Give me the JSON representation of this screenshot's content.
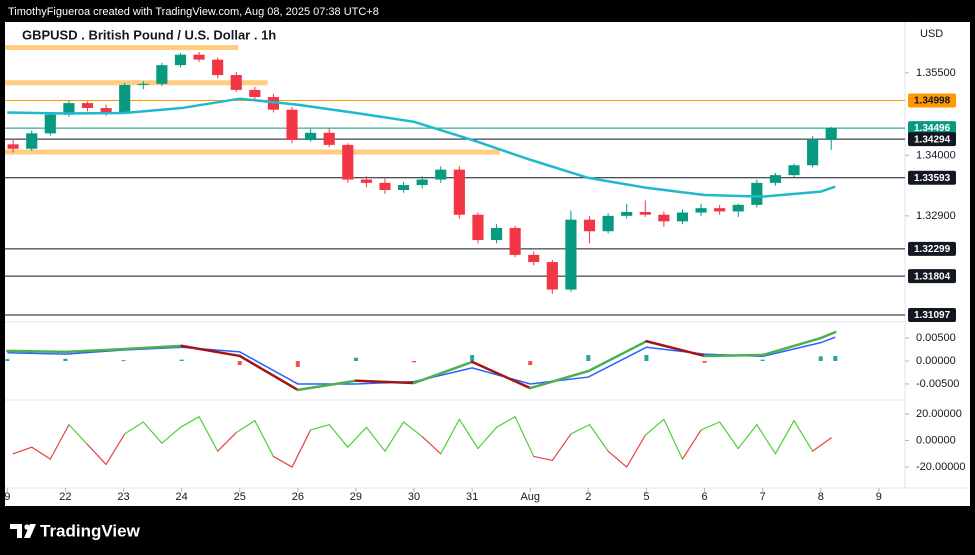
{
  "attribution": "TimothyFigueroa created with TradingView.com, Aug 08, 2025 07:38 UTC+8",
  "brand": "TradingView",
  "chart_data": [
    {
      "type": "candlestick",
      "title": "GBPUSD . British Pound / U.S. Dollar . 1h",
      "y_unit": "USD",
      "up_color": "#089981",
      "down_color": "#f23645",
      "xlim": [
        -0.04,
        15.45
      ],
      "xticks": [
        {
          "value": 0,
          "label": "9"
        },
        {
          "value": 1,
          "label": "22"
        },
        {
          "value": 2,
          "label": "23"
        },
        {
          "value": 3,
          "label": "24"
        },
        {
          "value": 4,
          "label": "25"
        },
        {
          "value": 5,
          "label": "26"
        },
        {
          "value": 6,
          "label": "29"
        },
        {
          "value": 7,
          "label": "30"
        },
        {
          "value": 8,
          "label": "31"
        },
        {
          "value": 9,
          "label": "Aug"
        },
        {
          "value": 10,
          "label": "2"
        },
        {
          "value": 11,
          "label": "5"
        },
        {
          "value": 12,
          "label": "6"
        },
        {
          "value": 13,
          "label": "7"
        },
        {
          "value": 14,
          "label": "8"
        },
        {
          "value": 15,
          "label": "9"
        }
      ],
      "ylim": [
        1.3097,
        1.3637
      ],
      "yticks": [
        {
          "value": 1.355,
          "label": "1.35500"
        },
        {
          "value": 1.34,
          "label": "1.34000"
        },
        {
          "value": 1.329,
          "label": "1.32900"
        }
      ],
      "x": [
        0.1,
        0.42,
        0.74,
        1.06,
        1.38,
        1.7,
        2.02,
        2.34,
        2.66,
        2.98,
        3.3,
        3.62,
        3.94,
        4.26,
        4.58,
        4.9,
        5.22,
        5.54,
        5.86,
        6.18,
        6.5,
        6.82,
        7.14,
        7.46,
        7.78,
        8.1,
        8.42,
        8.74,
        9.06,
        9.38,
        9.7,
        10.02,
        10.34,
        10.66,
        10.98,
        11.3,
        11.62,
        11.94,
        12.26,
        12.58,
        12.9,
        13.22,
        13.54,
        13.86,
        14.18
      ],
      "open": [
        1.342,
        1.3412,
        1.344,
        1.3474,
        1.3495,
        1.3486,
        1.3478,
        1.3528,
        1.353,
        1.3564,
        1.3583,
        1.3574,
        1.3546,
        1.3519,
        1.3506,
        1.3483,
        1.3428,
        1.3441,
        1.3419,
        1.3356,
        1.335,
        1.3337,
        1.3346,
        1.3356,
        1.3374,
        1.3292,
        1.3246,
        1.3268,
        1.3219,
        1.3206,
        1.3156,
        1.3283,
        1.3262,
        1.329,
        1.3297,
        1.3292,
        1.328,
        1.3296,
        1.3304,
        1.3298,
        1.331,
        1.335,
        1.3364,
        1.3382,
        1.3428
      ],
      "high": [
        1.3428,
        1.3445,
        1.3478,
        1.35,
        1.3498,
        1.3492,
        1.3532,
        1.3535,
        1.3568,
        1.3586,
        1.3588,
        1.3578,
        1.3552,
        1.3525,
        1.3512,
        1.3488,
        1.3448,
        1.345,
        1.3422,
        1.3362,
        1.3358,
        1.3352,
        1.3362,
        1.338,
        1.338,
        1.3296,
        1.3275,
        1.3272,
        1.3225,
        1.321,
        1.33,
        1.329,
        1.3295,
        1.3312,
        1.3318,
        1.3298,
        1.3302,
        1.3312,
        1.331,
        1.3312,
        1.3356,
        1.3368,
        1.3385,
        1.3435,
        1.3452
      ],
      "low": [
        1.3405,
        1.3408,
        1.3436,
        1.347,
        1.348,
        1.3472,
        1.3475,
        1.352,
        1.3526,
        1.356,
        1.357,
        1.354,
        1.3515,
        1.35,
        1.3478,
        1.3422,
        1.3425,
        1.3415,
        1.335,
        1.3342,
        1.333,
        1.3332,
        1.334,
        1.335,
        1.3285,
        1.324,
        1.324,
        1.3215,
        1.32,
        1.3148,
        1.3152,
        1.324,
        1.3258,
        1.3285,
        1.3288,
        1.327,
        1.3275,
        1.329,
        1.3292,
        1.3288,
        1.3305,
        1.3345,
        1.336,
        1.3378,
        1.341
      ],
      "close": [
        1.3412,
        1.344,
        1.3474,
        1.3495,
        1.3486,
        1.3478,
        1.3528,
        1.353,
        1.3564,
        1.3583,
        1.3574,
        1.3546,
        1.3519,
        1.3506,
        1.3483,
        1.3428,
        1.3441,
        1.3419,
        1.3356,
        1.335,
        1.3337,
        1.3346,
        1.3356,
        1.3374,
        1.3292,
        1.3246,
        1.3268,
        1.3219,
        1.3206,
        1.3156,
        1.3283,
        1.3262,
        1.329,
        1.3297,
        1.3292,
        1.328,
        1.3296,
        1.3304,
        1.3298,
        1.331,
        1.335,
        1.3364,
        1.3382,
        1.3428,
        1.345
      ],
      "moving_average": {
        "color": "#1eb8cf",
        "x": [
          0,
          1,
          2,
          3,
          4,
          5,
          6,
          7,
          8,
          9,
          10,
          11,
          12,
          13,
          14,
          14.25
        ],
        "values": [
          1.3478,
          1.3476,
          1.3477,
          1.3486,
          1.3503,
          1.3492,
          1.3477,
          1.3461,
          1.3428,
          1.3392,
          1.3359,
          1.3341,
          1.3328,
          1.3325,
          1.3334,
          1.3343
        ]
      },
      "zones": [
        {
          "value": 1.3596,
          "x": [
            -0.04,
            3.97
          ],
          "color": "#ffcc80"
        },
        {
          "value": 1.3532,
          "x": [
            -0.04,
            4.48
          ],
          "color": "#ffcc80"
        },
        {
          "value": 1.3406,
          "x": [
            -0.04,
            8.48
          ],
          "color": "#ffcc80"
        }
      ],
      "levels": [
        {
          "value": 1.34998,
          "color": "#ff9800",
          "text_color": "#131722"
        },
        {
          "value": 1.34496,
          "color": "#089981",
          "text_color": "#ffffff"
        },
        {
          "value": 1.34294,
          "color": "#131722",
          "text_color": "#ffffff"
        },
        {
          "value": 1.33593,
          "color": "#131722",
          "text_color": "#ffffff"
        },
        {
          "value": 1.32299,
          "color": "#131722",
          "text_color": "#ffffff"
        },
        {
          "value": 1.31804,
          "color": "#131722",
          "text_color": "#ffffff"
        },
        {
          "value": 1.31097,
          "color": "#131722",
          "text_color": "#ffffff"
        }
      ]
    },
    {
      "type": "line",
      "ylim": [
        -0.0085,
        0.0085
      ],
      "yticks": [
        {
          "value": 0.005,
          "label": "0.00500"
        },
        {
          "value": 0,
          "label": "0.00000"
        },
        {
          "value": -0.005,
          "label": "-0.00500"
        }
      ],
      "x": [
        0,
        1,
        2,
        3,
        4,
        5,
        6,
        7,
        8,
        9,
        10,
        11,
        12,
        13,
        14,
        14.25
      ],
      "series": [
        {
          "color": "#4caf50",
          "down_color": "#a31515",
          "values": [
            0.0022,
            0.002,
            0.0026,
            0.0033,
            0.0011,
            -0.0063,
            -0.0043,
            -0.0048,
            -0.0002,
            -0.0059,
            -0.0022,
            0.0043,
            0.0011,
            0.0013,
            0.005,
            0.0063
          ]
        },
        {
          "color": "#2962ff",
          "values": [
            0.0018,
            0.0015,
            0.0024,
            0.003,
            0.002,
            -0.005,
            -0.005,
            -0.0045,
            -0.0015,
            -0.005,
            -0.0035,
            0.003,
            0.0015,
            0.001,
            0.004,
            0.0052
          ]
        }
      ],
      "histogram": {
        "up_color": "#26a69a",
        "down_color": "#ef5350",
        "values": [
          0.0004,
          0.0005,
          0.0002,
          0.0003,
          -0.0009,
          -0.0013,
          0.0007,
          -0.0003,
          0.0013,
          -0.0009,
          0.0013,
          0.0013,
          -0.0004,
          0.0003,
          0.001,
          0.0011
        ]
      }
    },
    {
      "type": "line",
      "ylim": [
        -35.8,
        30.6
      ],
      "yticks": [
        {
          "value": 20,
          "label": "20.00000"
        },
        {
          "value": 0,
          "label": "0.00000"
        },
        {
          "value": -20,
          "label": "-20.00000"
        }
      ],
      "x": [
        0.1,
        0.42,
        0.74,
        1.06,
        1.38,
        1.7,
        2.02,
        2.34,
        2.66,
        2.98,
        3.3,
        3.62,
        3.94,
        4.26,
        4.58,
        4.9,
        5.22,
        5.54,
        5.86,
        6.18,
        6.5,
        6.82,
        7.14,
        7.46,
        7.78,
        8.1,
        8.42,
        8.74,
        9.06,
        9.38,
        9.7,
        10.02,
        10.34,
        10.66,
        10.98,
        11.3,
        11.62,
        11.94,
        12.26,
        12.58,
        12.9,
        13.22,
        13.54,
        13.86,
        14.18
      ],
      "series": [
        {
          "color": "#4cd137",
          "down_color": "#e84141",
          "values": [
            -10,
            -5,
            -14,
            12,
            -3,
            -18,
            5,
            14,
            -2,
            10,
            18,
            -8,
            6,
            15,
            -12,
            -20,
            8,
            12,
            -5,
            10,
            -8,
            14,
            3,
            -10,
            16,
            -6,
            10,
            18,
            -12,
            -15,
            5,
            12,
            -8,
            -20,
            4,
            16,
            -14,
            8,
            14,
            -6,
            12,
            -10,
            15,
            -8,
            2
          ]
        }
      ]
    }
  ]
}
